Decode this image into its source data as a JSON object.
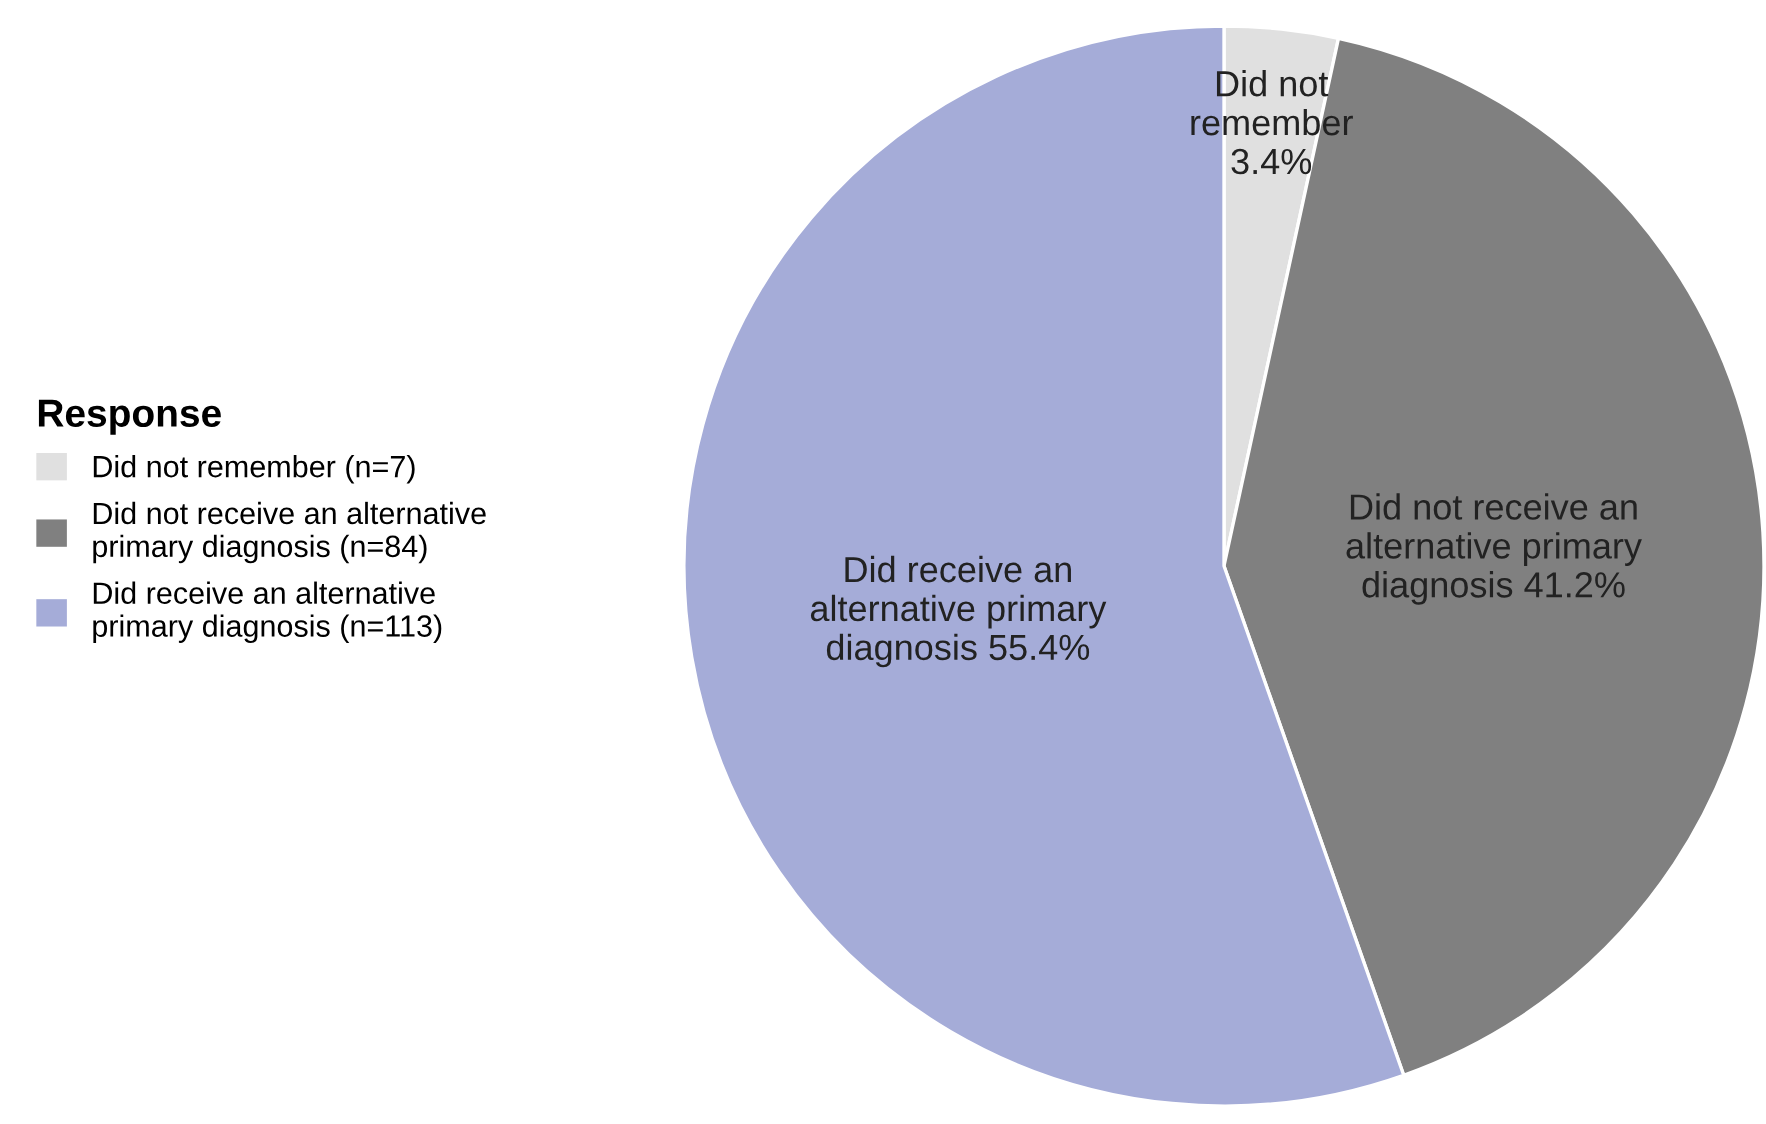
{
  "chart_data": {
    "type": "pie",
    "legend_title": "Response",
    "legend": "left",
    "categories": [
      "Did not remember (n=7)",
      "Did not receive an alternative\nprimary diagnosis (n=84)",
      "Did receive an alternative\nprimary diagnosis (n=113)"
    ],
    "values": [
      3.4,
      41.2,
      55.4
    ],
    "colors": [
      "#e0e0e0",
      "#808080",
      "#a5acd8"
    ],
    "value_labels": [
      "Did not\nremember\n3.4%",
      "Did not receive an\nalternative primary\ndiagnosis 41.2%",
      "Did receive an\nalternative primary\ndiagnosis 55.4%"
    ]
  }
}
